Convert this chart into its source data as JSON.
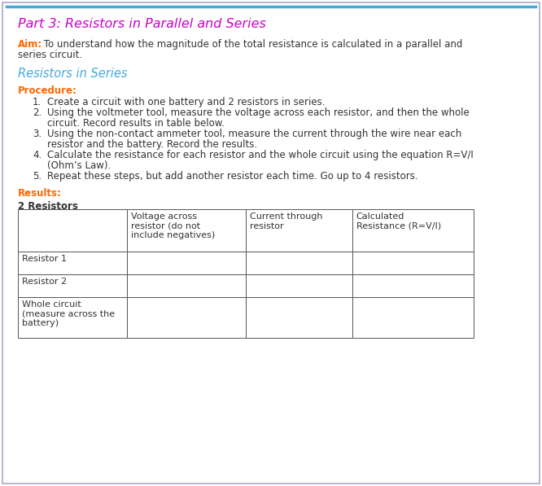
{
  "title": "Part 3: Resistors in Parallel and Series",
  "title_color": "#cc00cc",
  "aim_label": "Aim:",
  "aim_label_color": "#ff6600",
  "aim_text_line1": " To understand how the magnitude of the total resistance is calculated in a parallel and",
  "aim_text_line2": "series circuit.",
  "section_header": "Resistors in Series",
  "section_header_color": "#44aadd",
  "procedure_label": "Procedure:",
  "procedure_label_color": "#ff6600",
  "procedure_items": [
    "Create a circuit with one battery and 2 resistors in series.",
    "Using the voltmeter tool, measure the voltage across each resistor, and then the whole\ncircuit. Record results in table below.",
    "Using the non-contact ammeter tool, measure the current through the wire near each\nresistor and the battery. Record the results.",
    "Calculate the resistance for each resistor and the whole circuit using the equation R=V/I\n(Ohm’s Law).",
    "Repeat these steps, but add another resistor each time. Go up to 4 resistors."
  ],
  "results_label": "Results:",
  "results_label_color": "#ff6600",
  "table_title": "2 Resistors",
  "col_headers": [
    "",
    "Voltage across\nresistor (do not\ninclude negatives)",
    "Current through\nresistor",
    "Calculated\nResistance (R=V/I)"
  ],
  "row_labels": [
    "Resistor 1",
    "Resistor 2",
    "Whole circuit\n(measure across the\nbattery)"
  ],
  "top_bar_color": "#44aadd",
  "bg_color": "#ffffff",
  "border_color": "#aaaacc",
  "text_color": "#333333",
  "table_border_color": "#555555",
  "figw": 6.66,
  "figh": 5.97,
  "dpi": 100
}
